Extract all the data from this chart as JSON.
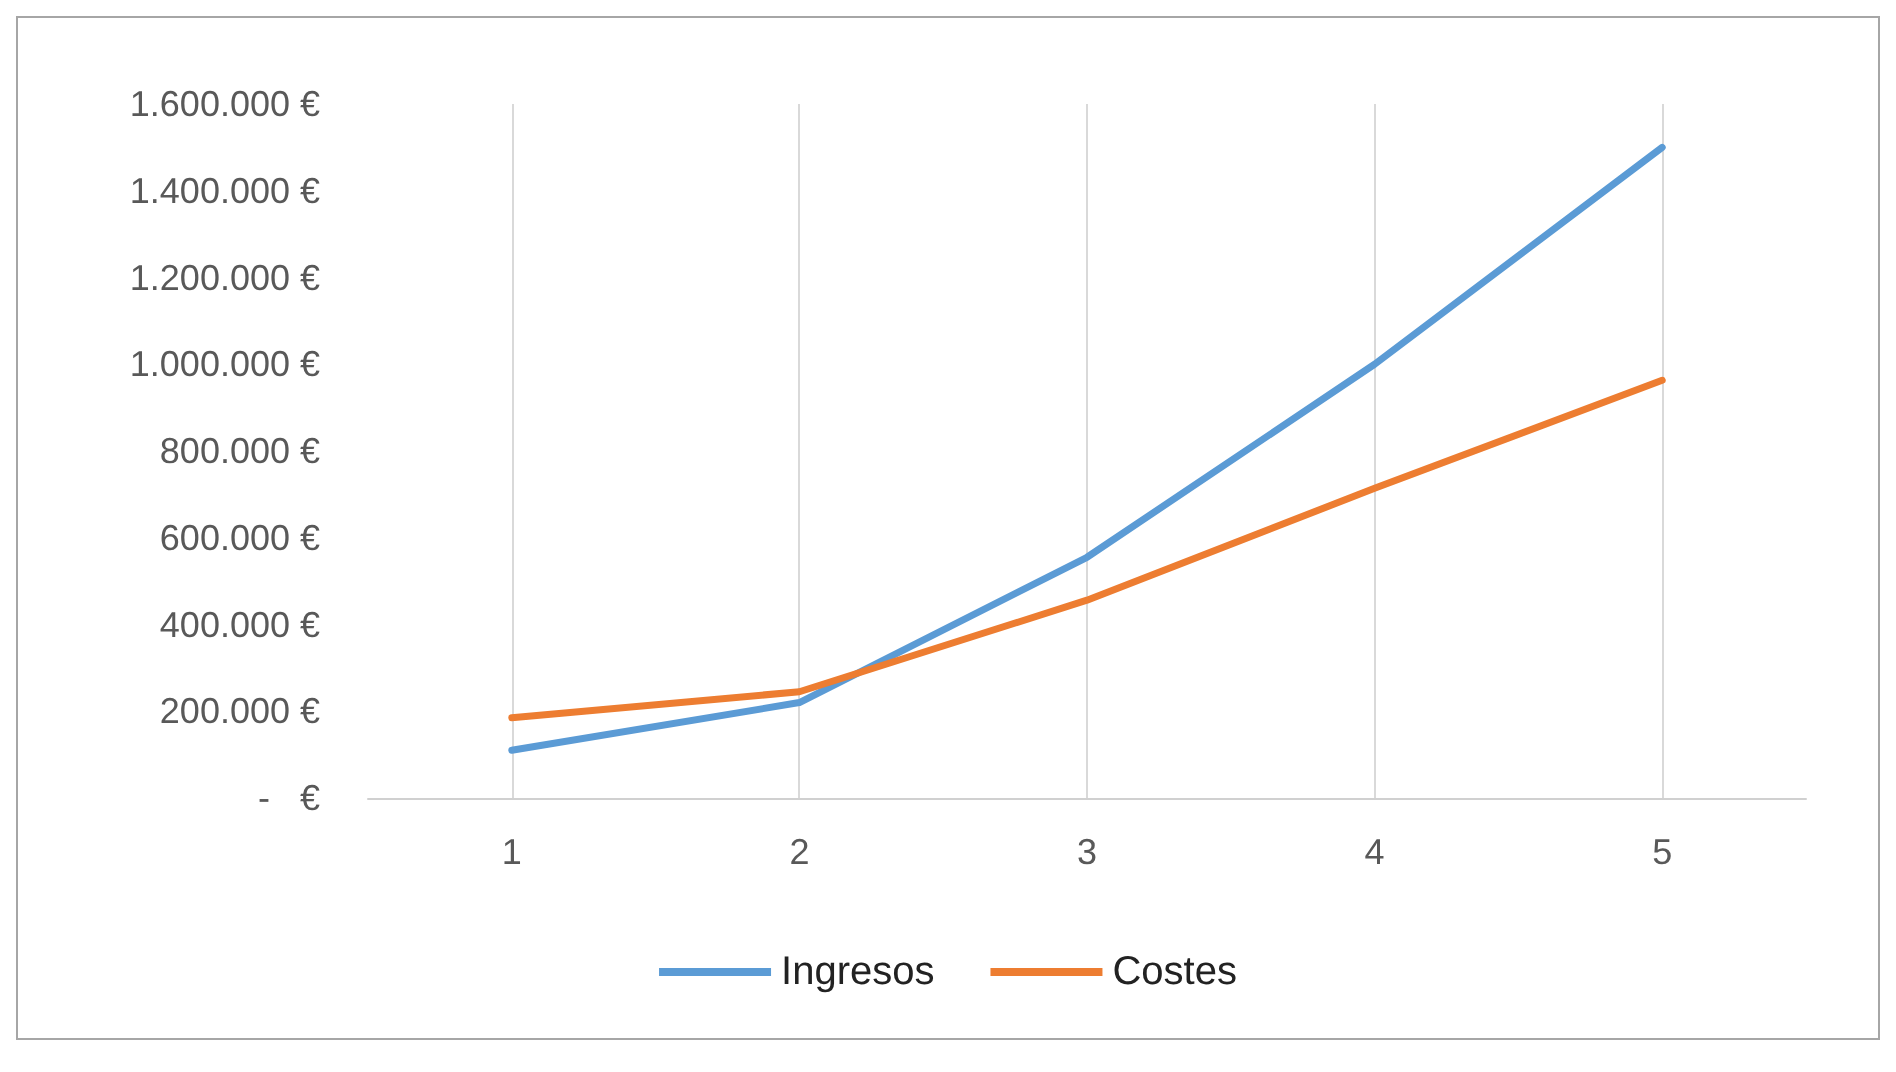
{
  "chart_data": {
    "type": "line",
    "x": [
      1,
      2,
      3,
      4,
      5
    ],
    "xlim": [
      0.5,
      5.5
    ],
    "xticks": [
      1,
      2,
      3,
      4,
      5
    ],
    "ylim": [
      0,
      1600000
    ],
    "yticks": [
      {
        "value": 0,
        "label": "-   €"
      },
      {
        "value": 200000,
        "label": "200.000 €"
      },
      {
        "value": 400000,
        "label": "400.000 €"
      },
      {
        "value": 600000,
        "label": "600.000 €"
      },
      {
        "value": 800000,
        "label": "800.000 €"
      },
      {
        "value": 1000000,
        "label": "1.000.000 €"
      },
      {
        "value": 1200000,
        "label": "1.200.000 €"
      },
      {
        "value": 1400000,
        "label": "1.400.000 €"
      },
      {
        "value": 1600000,
        "label": "1.600.000 €"
      }
    ],
    "series": [
      {
        "name": "Ingresos",
        "color": "#5b9bd5",
        "values": [
          110000,
          220000,
          555000,
          1000000,
          1500000
        ]
      },
      {
        "name": "Costes",
        "color": "#ed7d31",
        "values": [
          185000,
          245000,
          456000,
          714000,
          963000
        ]
      }
    ],
    "grid": "x",
    "legend": "bottom",
    "marker": "none",
    "line_style": "solid"
  }
}
